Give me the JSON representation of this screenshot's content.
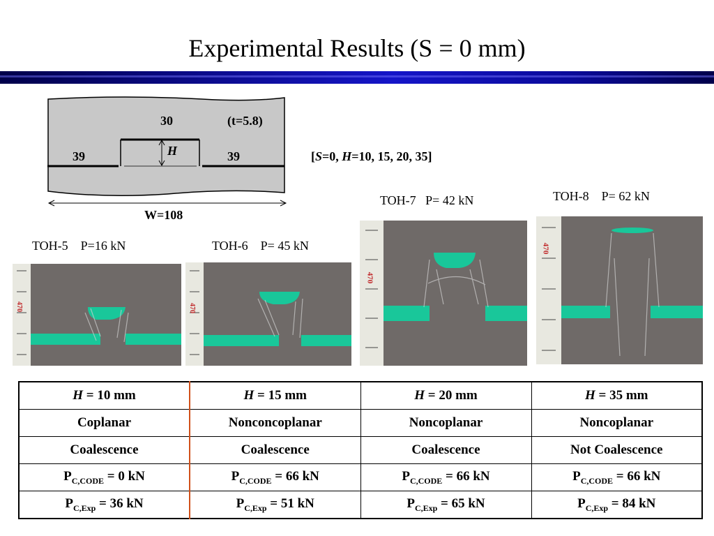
{
  "title": "Experimental Results (S = 0 mm)",
  "diagram": {
    "top_width": "30",
    "thickness": "(t=5.8)",
    "height_symbol": "H",
    "left_ligament": "39",
    "right_ligament": "39",
    "width": "W=108",
    "params": {
      "open": "[",
      "s": "S",
      "s_val": "=0, ",
      "h": "H",
      "h_val": "=10, 15, 20, 35]"
    }
  },
  "specimens": [
    {
      "id": "TOH-5",
      "load": "P=16 kN"
    },
    {
      "id": "TOH-6",
      "load": "P= 45 kN"
    },
    {
      "id": "TOH-7",
      "load": "P= 42 kN"
    },
    {
      "id": "TOH-8",
      "load": "P= 62 kN"
    }
  ],
  "table": {
    "h_symbol": "H",
    "headers": [
      "= 10 mm",
      "= 15 mm",
      "= 20 mm",
      "= 35 mm"
    ],
    "type": [
      "Coplanar",
      "Nonconcoplanar",
      "Noncoplanar",
      "Noncoplanar"
    ],
    "coalescence": [
      "Coalescence",
      "Coalescence",
      "Coalescence",
      "Not Coalescence"
    ],
    "p_symbol": "P",
    "code_sub": "C,CODE",
    "exp_sub": "C,Exp",
    "code_vals": [
      "= 0 kN",
      "= 66 kN",
      "= 66 kN",
      "= 66 kN"
    ],
    "exp_vals": [
      "= 36 kN",
      "= 51 kN",
      "= 65 kN",
      "= 84 kN"
    ]
  },
  "ruler_mark": "470",
  "colors": {
    "crack_fill": "#19c79a",
    "plate": "#6f6a68",
    "title_bar": "#1515c8",
    "table_separator": "#d0501a"
  }
}
